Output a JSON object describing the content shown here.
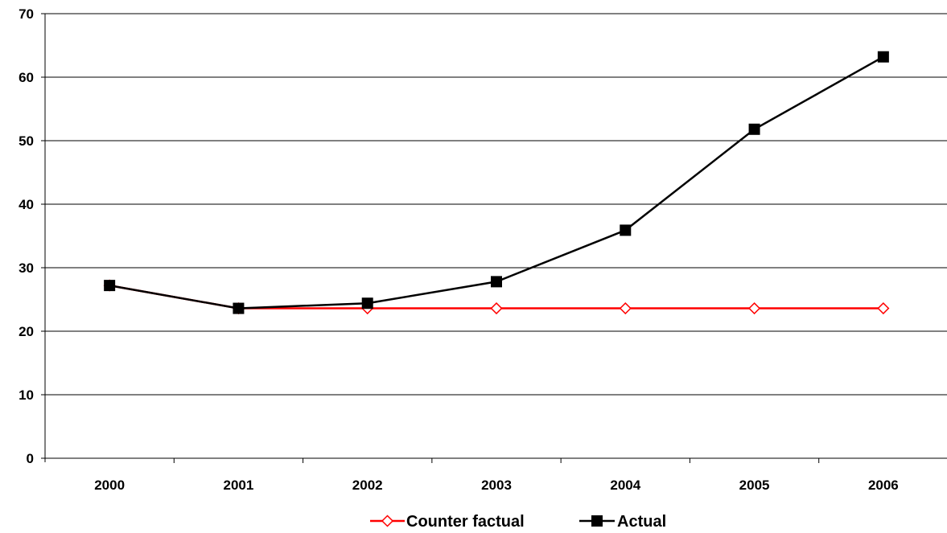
{
  "chart_data": {
    "type": "line",
    "title": "",
    "xlabel": "",
    "ylabel": "",
    "categories": [
      "2000",
      "2001",
      "2002",
      "2003",
      "2004",
      "2005",
      "2006"
    ],
    "ylim": [
      0,
      70
    ],
    "yticks": [
      0,
      10,
      20,
      30,
      40,
      50,
      60,
      70
    ],
    "grid": "horizontal",
    "legend_position": "bottom",
    "series": [
      {
        "name": "Counter factual",
        "color": "#ff0000",
        "marker": "open-diamond",
        "values": [
          27.2,
          23.6,
          23.6,
          23.6,
          23.6,
          23.6,
          23.6
        ]
      },
      {
        "name": "Actual",
        "color": "#000000",
        "marker": "filled-square",
        "values": [
          27.2,
          23.6,
          24.4,
          27.8,
          35.9,
          51.8,
          63.2
        ]
      }
    ]
  }
}
